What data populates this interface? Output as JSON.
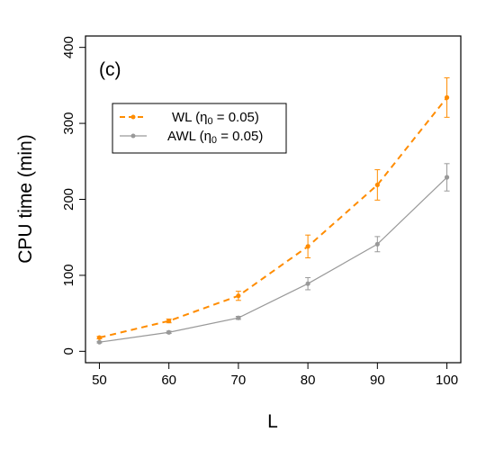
{
  "chart_data": {
    "type": "line",
    "panel_label": "(c)",
    "xlabel": "L",
    "ylabel": "CPU time (min)",
    "x": [
      50,
      60,
      70,
      80,
      90,
      100
    ],
    "xlim": [
      48,
      102
    ],
    "ylim": [
      -15,
      415
    ],
    "xticks": [
      50,
      60,
      70,
      80,
      90,
      100
    ],
    "yticks": [
      0,
      100,
      200,
      300,
      400
    ],
    "legend_position": "top-left",
    "series": [
      {
        "name": "WL",
        "legend_eta_symbol": "η",
        "legend_eta_subscript": "0",
        "legend_eta_value": " = 0.05)",
        "legend_open": " (",
        "values": [
          18,
          40,
          73,
          138,
          219,
          334
        ],
        "err": [
          1.5,
          2.5,
          6,
          15,
          20,
          26
        ],
        "color": "#ff8c00",
        "dashed": true
      },
      {
        "name": "AWL",
        "legend_eta_symbol": "η",
        "legend_eta_subscript": "0",
        "legend_eta_value": " = 0.05)",
        "legend_open": " (",
        "values": [
          12,
          25,
          44,
          89,
          141,
          229
        ],
        "err": [
          1,
          1.5,
          2,
          8,
          10,
          18
        ],
        "color": "#999999",
        "dashed": false
      }
    ]
  }
}
